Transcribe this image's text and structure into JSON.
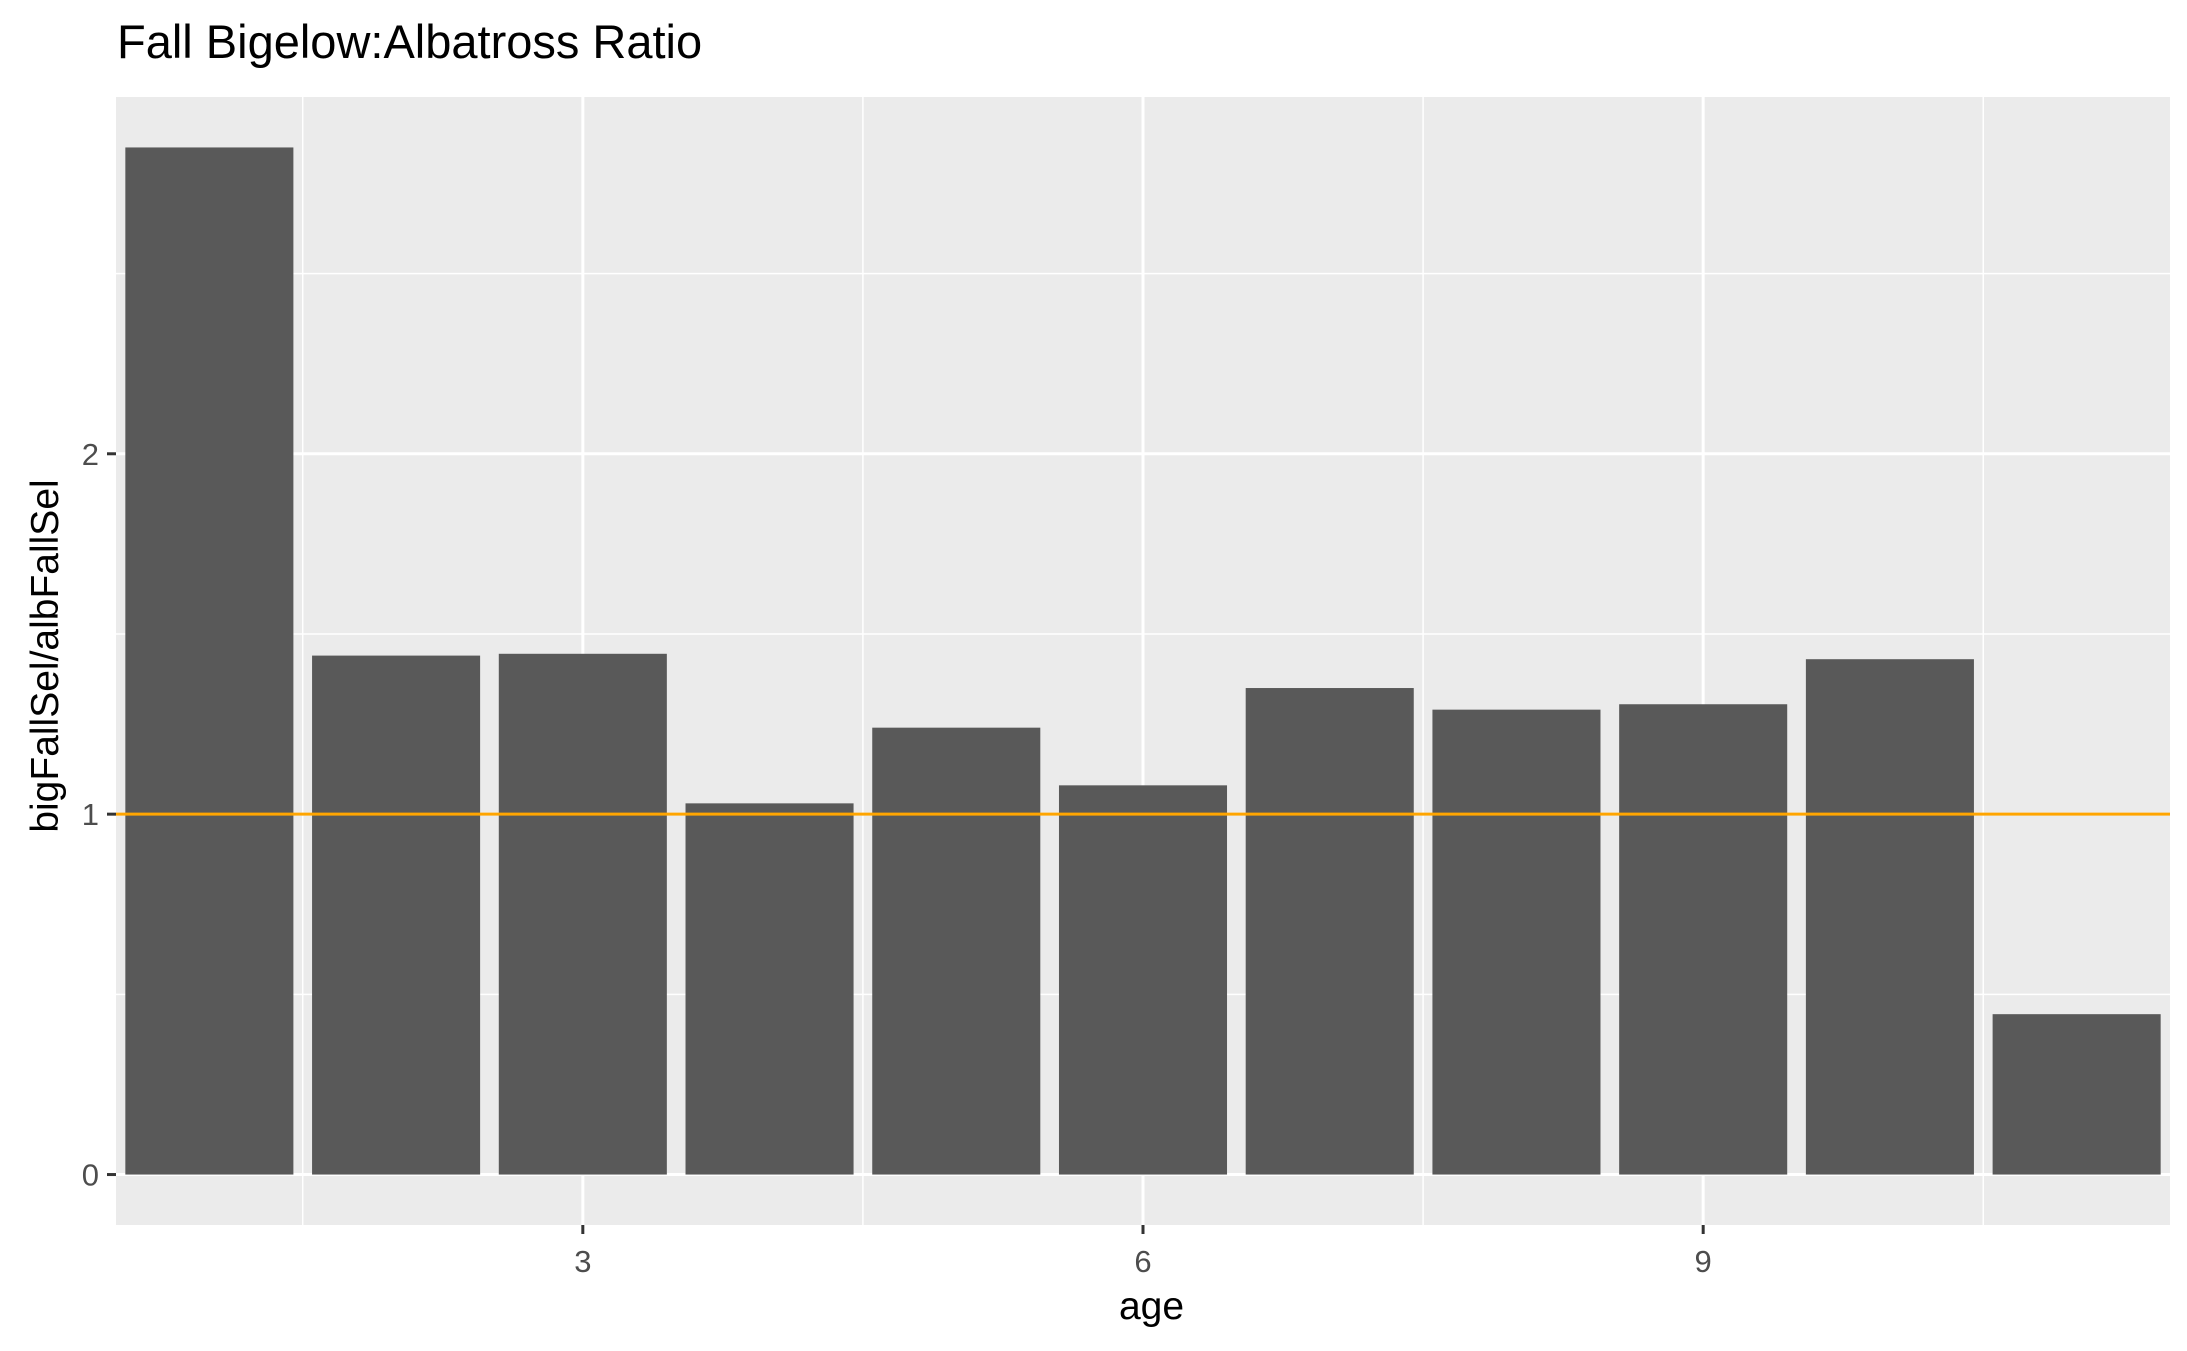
{
  "chart_data": {
    "type": "bar",
    "title": "Fall Bigelow:Albatross Ratio",
    "xlabel": "age",
    "ylabel": "bigFallSel/albFallSel",
    "x": [
      1,
      2,
      3,
      4,
      5,
      6,
      7,
      8,
      9,
      10,
      11
    ],
    "values": [
      2.85,
      1.44,
      1.445,
      1.03,
      1.24,
      1.08,
      1.35,
      1.29,
      1.305,
      1.43,
      0.445
    ],
    "xlim": [
      0.5,
      11.5
    ],
    "ylim": [
      -0.14,
      2.99
    ],
    "x_ticks": [
      3,
      6,
      9
    ],
    "y_ticks": [
      0,
      1,
      2
    ],
    "reference_line": {
      "y": 1,
      "color": "#FFA500"
    },
    "bar_color": "#595959",
    "panel_background": "#EBEBEB",
    "grid": true
  }
}
